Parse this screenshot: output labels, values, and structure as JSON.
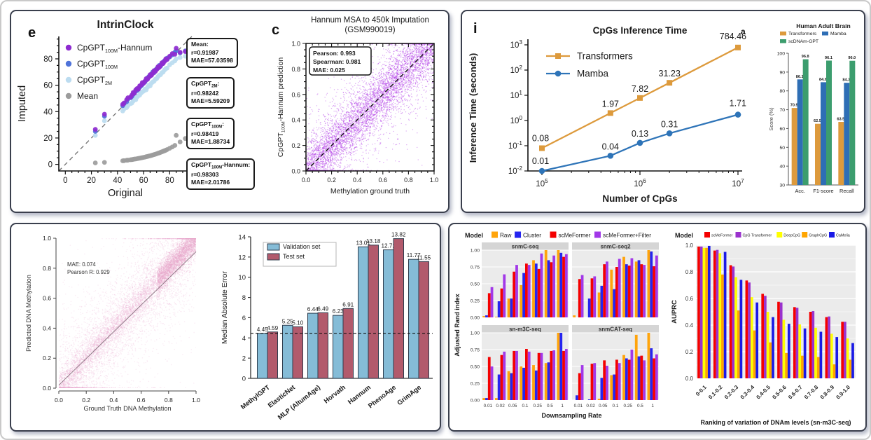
{
  "figure": {
    "panel_letters": {
      "e": "e",
      "c": "c",
      "i": "i",
      "a": "a"
    }
  },
  "chart_data": [
    {
      "id": "intrinclock",
      "type": "scatter",
      "title": "IntrinClock",
      "xlabel": "Original",
      "ylabel": "Imputed",
      "xticks": [
        0,
        20,
        40,
        60,
        80
      ],
      "yticks": [
        0,
        20,
        40,
        60,
        80
      ],
      "xlim": [
        -5,
        97
      ],
      "ylim": [
        -5,
        97
      ],
      "identity_line": true,
      "x": [
        23,
        30,
        44,
        45,
        47,
        48,
        50,
        51,
        52,
        53,
        54,
        55,
        56,
        57,
        58,
        59,
        60,
        61,
        62,
        63,
        64,
        65,
        66,
        67,
        68,
        69,
        70,
        71,
        72,
        73,
        74,
        75,
        76,
        77,
        78,
        80,
        82,
        84,
        85,
        88,
        92
      ],
      "series": [
        {
          "name_parts": [
            {
              "t": "Mean"
            }
          ],
          "color": "#9c9c9c",
          "y": [
            1.1,
            1.5,
            2.7,
            2.8,
            3.1,
            3.2,
            3.5,
            3.6,
            3.8,
            4.0,
            4.1,
            4.3,
            4.5,
            4.7,
            4.9,
            5.1,
            5.3,
            5.5,
            5.8,
            6.0,
            6.3,
            6.5,
            6.8,
            7.1,
            7.4,
            7.7,
            8.0,
            8.4,
            8.7,
            9.1,
            9.5,
            9.9,
            10.3,
            10.7,
            11.2,
            12.2,
            13.2,
            14.4,
            22.0,
            17.0,
            19.6
          ]
        },
        {
          "name_parts": [
            {
              "t": "CpGPT"
            },
            {
              "t": "2M",
              "sub": true
            }
          ],
          "color": "#bcdcf0",
          "y": [
            22,
            33,
            40.5,
            42,
            43,
            44.5,
            46,
            46.5,
            48,
            49.5,
            49,
            51,
            52,
            52.5,
            54,
            55,
            55.5,
            57,
            56.5,
            58.5,
            60,
            59.5,
            61.5,
            62.5,
            63,
            64.5,
            65,
            66.5,
            67.5,
            68,
            69.5,
            70,
            71.5,
            72.5,
            73,
            75.5,
            77,
            78.5,
            80,
            81,
            82
          ]
        },
        {
          "name_parts": [
            {
              "t": "CpGPT"
            },
            {
              "t": "100M",
              "sub": true
            }
          ],
          "color": "#4f73d9",
          "y": [
            25,
            36.5,
            44.5,
            46,
            47.5,
            49.5,
            50.5,
            51.5,
            53,
            54.5,
            55.5,
            56,
            57.5,
            58.5,
            59.5,
            60.5,
            62,
            62.5,
            64,
            65.5,
            66.5,
            67,
            68.5,
            70,
            69.5,
            71.5,
            72.5,
            73,
            75,
            74.5,
            76,
            77.5,
            78.5,
            79,
            80.5,
            81.5,
            83,
            85,
            86,
            84.5,
            86
          ]
        },
        {
          "name_parts": [
            {
              "t": "CpGPT"
            },
            {
              "t": "100M",
              "sub": true
            },
            {
              "t": "-Hannum"
            }
          ],
          "color": "#8e2bd0",
          "y": [
            26.5,
            38,
            45.5,
            46.5,
            49,
            50.5,
            51,
            52.5,
            54.5,
            54,
            56.5,
            57.5,
            57,
            59.5,
            60,
            62,
            61.5,
            63,
            65,
            64.5,
            66,
            68,
            67.5,
            69,
            71,
            70.5,
            72,
            74,
            73.5,
            75,
            77,
            76.5,
            78,
            80,
            79.5,
            82,
            84,
            83.5,
            88,
            85,
            85.5
          ]
        }
      ],
      "legend_order": [
        3,
        2,
        1,
        0
      ],
      "stat_boxes": [
        {
          "title_parts": [
            {
              "t": "Mean:"
            }
          ],
          "lines": [
            "r=0.91987",
            "MAE=57.03598"
          ]
        },
        {
          "title_parts": [
            {
              "t": "CpGPT"
            },
            {
              "t": "2M",
              "sub": true
            },
            {
              "t": ":"
            }
          ],
          "lines": [
            "r=0.98242",
            "MAE=5.59209"
          ]
        },
        {
          "title_parts": [
            {
              "t": "CpGPT"
            },
            {
              "t": "100M",
              "sub": true
            },
            {
              "t": ":"
            }
          ],
          "lines": [
            "r=0.98419",
            "MAE=1.88734"
          ]
        },
        {
          "title_parts": [
            {
              "t": "CpGPT"
            },
            {
              "t": "100M",
              "sub": true
            },
            {
              "t": "-Hannum:"
            }
          ],
          "lines": [
            "r=0.98303",
            "MAE=2.01786"
          ]
        }
      ]
    },
    {
      "id": "hannum",
      "type": "scatter-density",
      "title_lines": [
        "Hannum MSA to 450k Imputation",
        "(GSM990019)"
      ],
      "xlabel": "Methylation ground truth",
      "ylabel_parts": [
        {
          "t": "CpGPT"
        },
        {
          "t": "100M",
          "sub": true
        },
        {
          "t": "-Hannum prediction"
        }
      ],
      "ticks": [
        "0.0",
        "0.2",
        "0.4",
        "0.6",
        "0.8",
        "1.0"
      ],
      "stats": [
        "Pearson: 0.993",
        "Spearman: 0.981",
        "MAE: 0.025"
      ],
      "point_color": "#b23be8",
      "n_points": 6500,
      "seed": 42,
      "identity_line": true
    },
    {
      "id": "inference",
      "type": "line-log",
      "title": "CpGs Inference Time",
      "xlabel": "Number of CpGs",
      "ylabel": "Inference Time (seconds)",
      "x": [
        100000,
        500000,
        1000000,
        2000000,
        10000000
      ],
      "series": [
        {
          "name": "Transformers",
          "color": "#dd9a3c",
          "marker": "square",
          "values": [
            0.08,
            1.97,
            7.82,
            31.23,
            784.46
          ],
          "labels": [
            "0.08",
            "1.97",
            "7.82",
            "31.23",
            "784.46"
          ]
        },
        {
          "name": "Mamba",
          "color": "#2e74b8",
          "marker": "circle",
          "values": [
            0.01,
            0.04,
            0.13,
            0.31,
            1.71
          ],
          "labels": [
            "0.01",
            "0.04",
            "0.13",
            "0.31",
            "1.71"
          ]
        }
      ],
      "y_exponents": [
        -2,
        -1,
        0,
        1,
        2,
        3
      ],
      "x_exponents": [
        5,
        6,
        7
      ]
    },
    {
      "id": "brain",
      "type": "bar",
      "title": "Human Adult Brain",
      "ylabel": "Score (%)",
      "ylim": [
        30,
        100
      ],
      "yticks": [
        30,
        40,
        50,
        60,
        70,
        80,
        90,
        100
      ],
      "categories": [
        "Acc.",
        "F1-score",
        "Recall"
      ],
      "series": [
        {
          "name": "Transformers",
          "color": "#dd9a3c",
          "values": [
            70.9,
            62.5,
            63.5
          ],
          "labels": [
            "70.9",
            "62.5",
            "63.5"
          ]
        },
        {
          "name": "Mamba",
          "color": "#2e6eb5",
          "values": [
            86.1,
            84.6,
            84.3
          ],
          "labels": [
            "86.1",
            "84.6",
            "84.3"
          ]
        },
        {
          "name": "scDNAm-GPT",
          "color": "#3c9d6e",
          "values": [
            96.8,
            96.1,
            96.0
          ],
          "labels": [
            "96.8",
            "96.1",
            "96.0"
          ]
        }
      ]
    },
    {
      "id": "methyl_scatter",
      "type": "scatter-density",
      "stats": [
        "MAE: 0.074",
        "Pearson R: 0.929"
      ],
      "xlabel": "Ground Truth DNA Methylation",
      "ylabel": "Predicted DNA Methylation",
      "ticks": [
        "0.0",
        "0.2",
        "0.4",
        "0.6",
        "0.8",
        "1.0"
      ],
      "point_color": "#e8a6cb",
      "n_points": 9000,
      "seed": 7,
      "identity_line": true
    },
    {
      "id": "mae_bars",
      "type": "grouped-bar",
      "ylabel": "Median Absolute Error",
      "ylim": [
        0,
        14
      ],
      "yticks": [
        0,
        2,
        4,
        6,
        8,
        10,
        12,
        14
      ],
      "categories": [
        "MethylGPT",
        "ElasticNet",
        "MLP (AltumAge)",
        "Horvath",
        "Hannum",
        "PhenoAge",
        "GrimAge"
      ],
      "series": [
        {
          "name": "Validation set",
          "color": "#85bcd7",
          "values": [
            4.45,
            5.25,
            6.44,
            6.23,
            13.01,
            12.71,
            11.77
          ],
          "labels": [
            "4.45",
            "5.25",
            "6.44",
            "6.23",
            "13.01",
            "12.71",
            "11.77"
          ]
        },
        {
          "name": "Test set",
          "color": "#b25a6c",
          "values": [
            4.59,
            5.1,
            6.49,
            6.91,
            13.18,
            13.82,
            11.55
          ],
          "labels": [
            "4.59",
            "5.10",
            "6.49",
            "6.91",
            "13.18",
            "13.82",
            "11.55"
          ]
        }
      ],
      "dashed_line": 4.45
    },
    {
      "id": "ari",
      "type": "facet-bar",
      "legend_title": "Model",
      "ylabel": "Adjusted Rand index",
      "xlabel": "Downsampling Rate",
      "x_categories": [
        "0.01",
        "0.02",
        "0.05",
        "0.1",
        "0.25",
        "0.5",
        "1"
      ],
      "ytick_labels": [
        "0.00",
        "0.25",
        "0.50",
        "0.75",
        "1.00"
      ],
      "models": [
        {
          "name": "Raw",
          "color": "#ffa40b"
        },
        {
          "name": "Cluster",
          "color": "#2525f0"
        },
        {
          "name": "scMeFormer",
          "color": "#f40000"
        },
        {
          "name": "scMeFormer+Filter",
          "color": "#a238e8"
        }
      ],
      "facets": [
        {
          "title": "snmC-seq",
          "values": [
            [
              0.02,
              0.03,
              0.36,
              0.45
            ],
            [
              0.01,
              0.24,
              0.43,
              0.64
            ],
            [
              0.28,
              0.28,
              0.68,
              0.78
            ],
            [
              0.48,
              0.66,
              0.8,
              0.78
            ],
            [
              0.85,
              0.8,
              0.72,
              0.95
            ],
            [
              1.0,
              0.85,
              0.82,
              0.92
            ],
            [
              1.0,
              0.96,
              0.9,
              0.94
            ]
          ]
        },
        {
          "title": "snmC-seq2",
          "values": [
            [
              0.03,
              0.0,
              0.57,
              0.63
            ],
            [
              0.0,
              0.28,
              0.58,
              0.61
            ],
            [
              0.37,
              0.47,
              0.79,
              0.83
            ],
            [
              0.71,
              0.42,
              0.75,
              0.87
            ],
            [
              0.9,
              0.79,
              0.77,
              0.88
            ],
            [
              0.83,
              0.85,
              0.79,
              0.78
            ],
            [
              1.0,
              0.98,
              0.76,
              0.92
            ]
          ]
        },
        {
          "title": "sn-m3C-seq",
          "values": [
            [
              0.03,
              0.03,
              0.64,
              0.5
            ],
            [
              0.03,
              0.38,
              0.67,
              0.72
            ],
            [
              0.43,
              0.4,
              0.73,
              0.73
            ],
            [
              0.5,
              0.48,
              0.76,
              0.72
            ],
            [
              0.52,
              0.44,
              0.7,
              0.7
            ],
            [
              0.55,
              0.56,
              0.73,
              0.74
            ],
            [
              1.0,
              1.0,
              0.73,
              0.76
            ]
          ]
        },
        {
          "title": "snmCAT-seq",
          "values": [
            [
              0.0,
              0.07,
              0.4,
              0.52
            ],
            [
              0.0,
              0.01,
              0.54,
              0.55
            ],
            [
              0.02,
              0.33,
              0.59,
              0.51
            ],
            [
              0.37,
              0.38,
              0.6,
              0.55
            ],
            [
              0.67,
              0.62,
              0.6,
              0.75
            ],
            [
              0.97,
              0.65,
              0.66,
              0.59
            ],
            [
              1.0,
              0.77,
              0.62,
              0.68
            ]
          ]
        }
      ]
    },
    {
      "id": "auprc",
      "type": "grouped-bar",
      "legend_title": "Model",
      "ylabel": "AUPRC",
      "xlabel": "Ranking of variation of DNAm levels (sn-m3C-seq)",
      "ytick_labels": [
        "0.0",
        "0.2",
        "0.4",
        "0.6",
        "0.8",
        "1.0"
      ],
      "categories": [
        "0-0.1",
        "0.1-0.2",
        "0.2-0.3",
        "0.3-0.4",
        "0.4-0.5",
        "0.5-0.6",
        "0.6-0.7",
        "0.7-0.8",
        "0.8-0.9",
        "0.9-1.0"
      ],
      "series": [
        {
          "name": "scMeFormer",
          "color": "#f40000",
          "values": [
            0.99,
            0.96,
            0.85,
            0.735,
            0.635,
            0.575,
            0.535,
            0.5,
            0.46,
            0.425
          ]
        },
        {
          "name": "CpG Transformer",
          "color": "#9a32cd",
          "values": [
            0.99,
            0.965,
            0.84,
            0.72,
            0.62,
            0.57,
            0.53,
            0.505,
            0.465,
            0.425
          ]
        },
        {
          "name": "DeepCpG",
          "color": "#ffff00",
          "values": [
            0.98,
            0.94,
            0.76,
            0.61,
            0.5,
            0.44,
            0.405,
            0.38,
            0.335,
            0.3
          ]
        },
        {
          "name": "GraphCpG",
          "color": "#ffa500",
          "values": [
            0.98,
            0.78,
            0.51,
            0.36,
            0.27,
            0.19,
            0.17,
            0.16,
            0.105,
            0.14
          ]
        },
        {
          "name": "CaMelia",
          "color": "#1a1ae6",
          "values": [
            0.995,
            0.95,
            0.74,
            0.57,
            0.46,
            0.41,
            0.375,
            0.35,
            0.31,
            0.265
          ]
        }
      ]
    }
  ]
}
